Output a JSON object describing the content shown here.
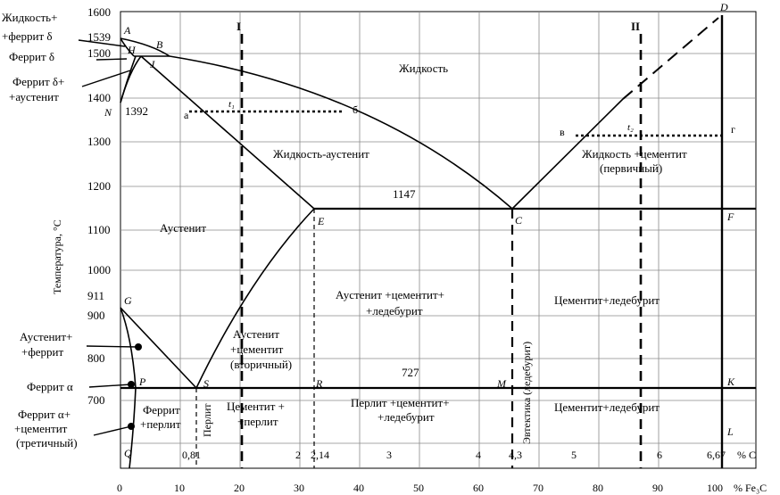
{
  "axes": {
    "y_title": "Температура, °С",
    "y_ticks": [
      "1600",
      "1500",
      "1400",
      "1300",
      "1200",
      "1100",
      "1000",
      "900",
      "800",
      "700"
    ],
    "x_c_ticks": [
      "0,81",
      "2",
      "2,14",
      "3",
      "4",
      "4,3",
      "5",
      "6",
      "6,67"
    ],
    "x_c_unit": "% С",
    "x_fe3c_ticks": [
      "0",
      "10",
      "20",
      "30",
      "40",
      "50",
      "60",
      "70",
      "80",
      "90",
      "100"
    ],
    "x_fe3c_unit": "% Fe₃C",
    "special_temps": {
      "t1539": "1539",
      "t1392": "1392",
      "t911": "911",
      "t1147": "1147",
      "t727": "727"
    }
  },
  "points": {
    "A": "A",
    "B": "B",
    "H": "H",
    "J": "J",
    "N": "N",
    "D": "D",
    "E": "E",
    "C": "C",
    "F": "F",
    "G": "G",
    "P": "P",
    "S": "S",
    "K": "K",
    "Q": "Q",
    "L": "L",
    "R": "R",
    "M": "M"
  },
  "sections": {
    "I": "I",
    "II": "II"
  },
  "construction": {
    "a": "а",
    "b": "б",
    "v": "в",
    "g": "г",
    "t1": "t₁",
    "t2": "t₂"
  },
  "left_labels": {
    "liq_ferrite_1": "Жидкость+",
    "liq_ferrite_2": "+феррит δ",
    "ferrite_delta": "Феррит δ",
    "ferrite_aust_1": "Феррит δ+",
    "ferrite_aust_2": "+аустенит",
    "aust_ferrite_1": "Аустенит+",
    "aust_ferrite_2": "+феррит",
    "ferrite_alpha": "Феррит α",
    "ferrite_cem_1": "Феррит α+",
    "ferrite_cem_2": "+цементит",
    "ferrite_cem_3": "(третичный)"
  },
  "regions": {
    "liquid": "Жидкость",
    "liquid_austenite": "Жидкость-аустенит",
    "liquid_cementite_1": "Жидкость +цементит",
    "liquid_cementite_2": "(первичный)",
    "austenite": "Аустенит",
    "aust_cem_led_1": "Аустенит +цементит+",
    "aust_cem_led_2": "+ледебурит",
    "cem_led_upper": "Цементит+ледебурит",
    "aust_cem2_1": "Аустенит",
    "aust_cem2_2": "+цементит",
    "aust_cem2_3": "(вторичный)",
    "eutectic": "Эвтектика (ледебурит)",
    "ferrite_pearlite_1": "Феррит",
    "ferrite_pearlite_2": "+перлит",
    "pearlite": "Перлит",
    "cem_pearlite_1": "Цементит +",
    "cem_pearlite_2": "+перлит",
    "pearl_cem_led_1": "Перлит +цементит+",
    "pearl_cem_led_2": "+ледебурит",
    "cem_led_lower": "Цементит+ледебурит"
  }
}
